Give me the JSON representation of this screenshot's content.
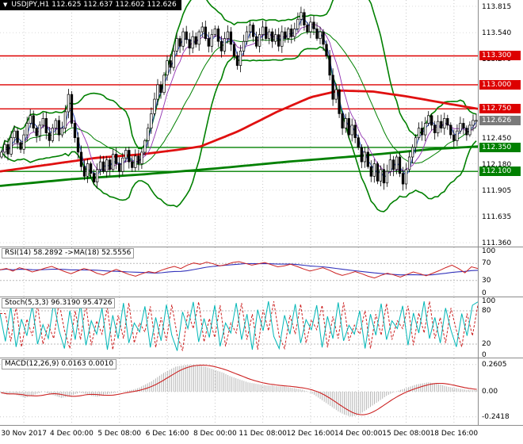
{
  "header": {
    "text": "USDJPY,H1 112.625 112.637 112.602 112.626"
  },
  "icons": {
    "collapse_glyph": "▼"
  },
  "chart_data": [
    {
      "type": "candlestick",
      "symbol": "USDJPY",
      "timeframe": "H1",
      "ohlc": {
        "open": 112.625,
        "high": 112.637,
        "low": 112.602,
        "close": 112.626
      },
      "y_range": [
        111.32,
        113.88
      ],
      "y_ticks": [
        {
          "v": 113.815,
          "label": "113.815"
        },
        {
          "v": 113.54,
          "label": "113.540"
        },
        {
          "v": 113.27,
          "label": "113.270"
        },
        {
          "v": 112.45,
          "label": "112.450"
        },
        {
          "v": 112.18,
          "label": "112.180"
        },
        {
          "v": 111.905,
          "label": "111.905"
        },
        {
          "v": 111.635,
          "label": "111.635"
        },
        {
          "v": 111.36,
          "label": "111.360"
        }
      ],
      "hlines": [
        {
          "value": 113.3,
          "color": "#dd0000",
          "label": "113.300"
        },
        {
          "value": 113.0,
          "color": "#dd0000",
          "label": "113.000"
        },
        {
          "value": 112.75,
          "color": "#dd0000",
          "label": "112.750"
        },
        {
          "value": 112.35,
          "color": "#008000",
          "label": "112.350"
        },
        {
          "value": 112.1,
          "color": "#008000",
          "label": "112.100"
        }
      ],
      "current_price": 112.626,
      "close": [
        112.3,
        112.38,
        112.28,
        112.45,
        112.52,
        112.4,
        112.33,
        112.48,
        112.6,
        112.68,
        112.55,
        112.47,
        112.58,
        112.65,
        112.5,
        112.42,
        112.55,
        112.63,
        112.48,
        112.55,
        112.72,
        112.9,
        112.6,
        112.45,
        112.3,
        112.15,
        112.05,
        112.18,
        112.08,
        111.99,
        112.12,
        112.2,
        112.1,
        112.22,
        112.12,
        112.28,
        112.18,
        112.1,
        112.24,
        112.32,
        112.2,
        112.14,
        112.26,
        112.18,
        112.3,
        112.42,
        112.55,
        112.7,
        112.85,
        113.0,
        112.92,
        113.1,
        113.25,
        113.18,
        113.35,
        113.48,
        113.4,
        113.55,
        113.47,
        113.38,
        113.5,
        113.42,
        113.55,
        113.6,
        113.48,
        113.4,
        113.52,
        113.58,
        113.45,
        113.35,
        113.48,
        113.55,
        113.42,
        113.3,
        113.2,
        113.35,
        113.45,
        113.55,
        113.62,
        113.5,
        113.4,
        113.52,
        113.6,
        113.48,
        113.55,
        113.45,
        113.52,
        113.4,
        113.55,
        113.48,
        113.58,
        113.5,
        113.58,
        113.68,
        113.75,
        113.62,
        113.55,
        113.65,
        113.58,
        113.48,
        113.55,
        113.42,
        113.3,
        113.1,
        112.85,
        112.95,
        112.7,
        112.55,
        112.65,
        112.48,
        112.58,
        112.45,
        112.35,
        112.2,
        112.3,
        112.15,
        112.05,
        112.18,
        112.0,
        112.12,
        111.98,
        112.1,
        112.22,
        112.12,
        112.25,
        112.08,
        111.97,
        112.12,
        112.25,
        112.35,
        112.45,
        112.55,
        112.48,
        112.6,
        112.68,
        112.58,
        112.5,
        112.62,
        112.55,
        112.65,
        112.58,
        112.48,
        112.42,
        112.52,
        112.6,
        112.55,
        112.48,
        112.58,
        112.63,
        112.63
      ],
      "overlays": {
        "bollinger": {
          "period": 20,
          "deviation": 2,
          "color": "#008000"
        },
        "ma_red": {
          "color": "#e01010",
          "points": [
            [
              0,
              112.1
            ],
            [
              0.1,
              112.17
            ],
            [
              0.2,
              112.24
            ],
            [
              0.3,
              112.28
            ],
            [
              0.38,
              112.33
            ],
            [
              0.42,
              112.36
            ],
            [
              0.5,
              112.52
            ],
            [
              0.58,
              112.72
            ],
            [
              0.65,
              112.87
            ],
            [
              0.71,
              112.94
            ],
            [
              0.78,
              112.93
            ],
            [
              0.85,
              112.88
            ],
            [
              0.93,
              112.81
            ],
            [
              1,
              112.75
            ]
          ]
        },
        "ma_green": {
          "color": "#008000",
          "points": [
            [
              0,
              111.95
            ],
            [
              0.15,
              112.02
            ],
            [
              0.3,
              112.07
            ],
            [
              0.45,
              112.13
            ],
            [
              0.6,
              112.2
            ],
            [
              0.75,
              112.26
            ],
            [
              0.9,
              112.33
            ],
            [
              1,
              112.36
            ]
          ]
        },
        "fast_ma_colors": [
          "#3050c8",
          "#9030b0"
        ]
      },
      "x_labels": [
        "30 Nov 2017",
        "4 Dec 00:00",
        "5 Dec 08:00",
        "6 Dec 16:00",
        "8 Dec 00:00",
        "11 Dec 08:00",
        "12 Dec 16:00",
        "14 Dec 00:00",
        "15 Dec 08:00",
        "18 Dec 16:00"
      ]
    },
    {
      "type": "line",
      "title": "RSI(14) 58.2892 ->MA(18) 52.5556",
      "current_values": [
        58.2892,
        52.5556
      ],
      "y_range": [
        0,
        100
      ],
      "y_ticks": [
        {
          "v": 100,
          "label": "100"
        },
        {
          "v": 70,
          "label": "70"
        },
        {
          "v": 30,
          "label": "30"
        },
        {
          "v": 0,
          "label": "0"
        }
      ],
      "levels": [
        70,
        30
      ],
      "series": [
        {
          "name": "RSI(14)",
          "color": "#cc2222",
          "values": [
            55,
            58,
            52,
            60,
            56,
            50,
            54,
            59,
            63,
            57,
            51,
            46,
            52,
            58,
            54,
            47,
            43,
            50,
            56,
            50,
            44,
            40,
            46,
            51,
            48,
            54,
            59,
            63,
            58,
            66,
            71,
            68,
            73,
            69,
            64,
            67,
            72,
            74,
            70,
            66,
            69,
            72,
            67,
            62,
            64,
            68,
            63,
            57,
            52,
            56,
            60,
            54,
            47,
            42,
            46,
            51,
            46,
            40,
            36,
            42,
            47,
            43,
            38,
            44,
            50,
            46,
            41,
            47,
            53,
            60,
            66,
            58,
            48,
            62,
            58
          ]
        },
        {
          "name": "MA(18)",
          "color": "#3333bb",
          "derived": "sma10"
        }
      ]
    },
    {
      "type": "line",
      "title": "Stoch(5,3,3) 96.3190 95.4726",
      "current_values": [
        96.319,
        95.4726
      ],
      "y_range": [
        0,
        100
      ],
      "y_ticks": [
        {
          "v": 100,
          "label": "100"
        },
        {
          "v": 80,
          "label": "80"
        },
        {
          "v": 20,
          "label": "20"
        },
        {
          "v": 0,
          "label": "0"
        }
      ],
      "levels": [
        80,
        20
      ],
      "series": [
        {
          "name": "%K",
          "color": "#00b6b6",
          "values": [
            75,
            25,
            88,
            15,
            65,
            35,
            90,
            20,
            55,
            30,
            95,
            45,
            12,
            80,
            28,
            92,
            18,
            62,
            38,
            85,
            10,
            72,
            30,
            94,
            22,
            58,
            42,
            88,
            14,
            68,
            26,
            91,
            36,
            8,
            78,
            48,
            96,
            24,
            66,
            32,
            90,
            16,
            58,
            40,
            94,
            28,
            74,
            10,
            82,
            44,
            97,
            34,
            12,
            72,
            38,
            92,
            22,
            64,
            46,
            90,
            14,
            70,
            30,
            95,
            26,
            54,
            38,
            80,
            12,
            74,
            36,
            93,
            28,
            62,
            48,
            89,
            18,
            76,
            40,
            97,
            30,
            68,
            22,
            85,
            45,
            15,
            75,
            35,
            90,
            96
          ]
        },
        {
          "name": "%D",
          "color": "#cc2222",
          "style": "dashed",
          "derived": "lag1"
        }
      ]
    },
    {
      "type": "histogram+line",
      "title": "MACD(12,26,9) 0.0163 0.0010",
      "current_values": [
        0.0163,
        0.001
      ],
      "y_range": [
        -0.32,
        0.32
      ],
      "y_ticks": [
        {
          "v": 0.2605,
          "label": "0.2605"
        },
        {
          "v": 0,
          "label": "0.00"
        },
        {
          "v": -0.2418,
          "label": "-0.2418"
        }
      ],
      "histogram_color": "#b6b6b6",
      "signal_color": "#cc2222",
      "values": [
        -0.01,
        -0.03,
        -0.02,
        -0.04,
        -0.06,
        -0.04,
        -0.02,
        0.0,
        -0.02,
        -0.04,
        -0.06,
        -0.05,
        -0.03,
        -0.01,
        -0.02,
        -0.04,
        -0.05,
        -0.03,
        -0.02,
        -0.01,
        0.0,
        0.01,
        0.02,
        0.04,
        0.07,
        0.1,
        0.14,
        0.18,
        0.21,
        0.24,
        0.25,
        0.26,
        0.26,
        0.25,
        0.24,
        0.22,
        0.2,
        0.18,
        0.15,
        0.13,
        0.11,
        0.09,
        0.08,
        0.07,
        0.06,
        0.06,
        0.05,
        0.05,
        0.04,
        0.03,
        0.02,
        0.0,
        -0.03,
        -0.07,
        -0.11,
        -0.15,
        -0.19,
        -0.22,
        -0.24,
        -0.23,
        -0.2,
        -0.16,
        -0.12,
        -0.08,
        -0.04,
        -0.01,
        0.01,
        0.03,
        0.05,
        0.07,
        0.08,
        0.09,
        0.08,
        0.07,
        0.05,
        0.04,
        0.03,
        0.02,
        0.016,
        0.016
      ]
    }
  ]
}
